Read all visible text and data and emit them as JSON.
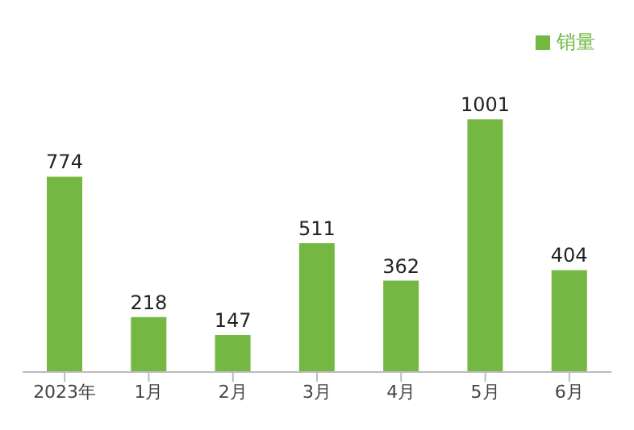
{
  "chart_data": {
    "type": "bar",
    "categories": [
      "2023年",
      "1月",
      "2月",
      "3月",
      "4月",
      "5月",
      "6月"
    ],
    "series": [
      {
        "name": "销量",
        "color": "#74b843",
        "values": [
          774,
          218,
          147,
          511,
          362,
          1001,
          404
        ]
      }
    ],
    "data_labels": true,
    "legend": "top right",
    "tick_labels": "x",
    "grid": false
  }
}
